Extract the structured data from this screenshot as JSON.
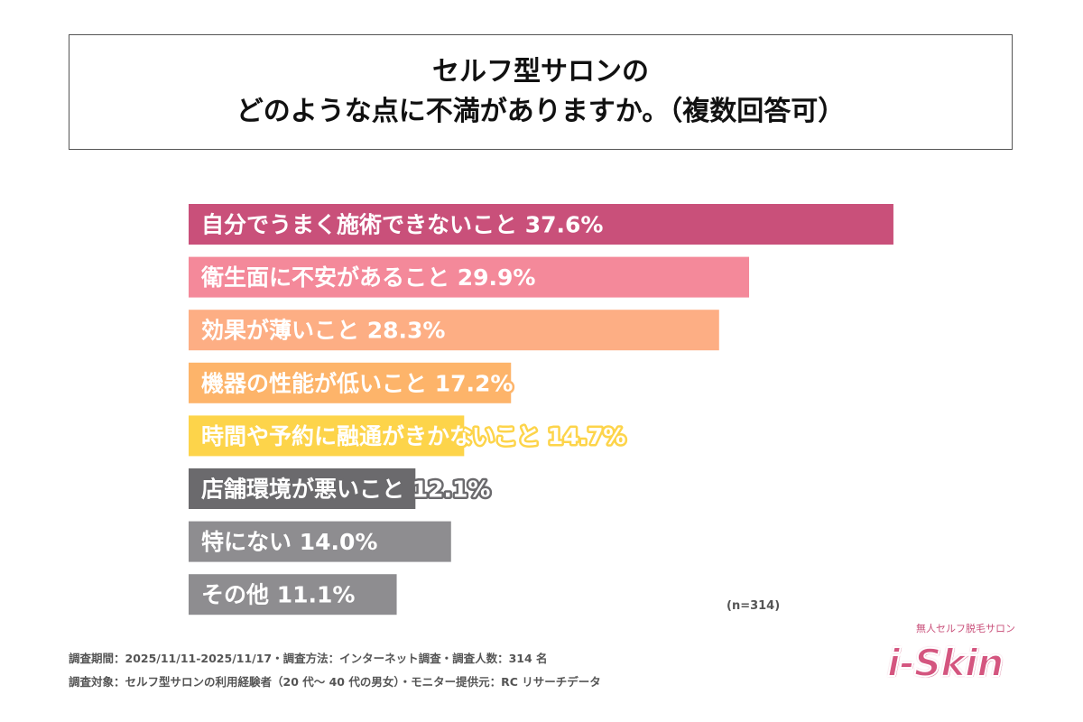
{
  "title": {
    "line1": "セルフ型サロンの",
    "line2": "どのような点に不満がありますか。（複数回答可）"
  },
  "chart_data": {
    "type": "bar",
    "orientation": "horizontal",
    "categories": [
      "自分でうまく施術できないこと",
      "衛生面に不安があること",
      "効果が薄いこと",
      "機器の性能が低いこと",
      "時間や予約に融通がきかないこと",
      "店舗環境が悪いこと",
      "特にない",
      "その他"
    ],
    "values": [
      37.6,
      29.9,
      28.3,
      17.2,
      14.7,
      12.1,
      14.0,
      11.1
    ],
    "unit": "%",
    "colors": [
      "#c9507a",
      "#f4899a",
      "#fdae84",
      "#fdb46a",
      "#fdd44a",
      "#6b6a6d",
      "#8e8d90",
      "#8e8d90"
    ],
    "grid": false,
    "note": "(n=314)"
  },
  "footer": {
    "line1": "調査期間：2025/11/11-2025/11/17・調査方法：インターネット調査・調査人数：314 名",
    "line2": "調査対象：セルフ型サロンの利用経験者（20 代～ 40 代の男女）・モニター提供元：RC リサーチデータ"
  },
  "logo": {
    "subtitle": "無人セルフ脱毛サロン",
    "name": "i-Skin"
  }
}
